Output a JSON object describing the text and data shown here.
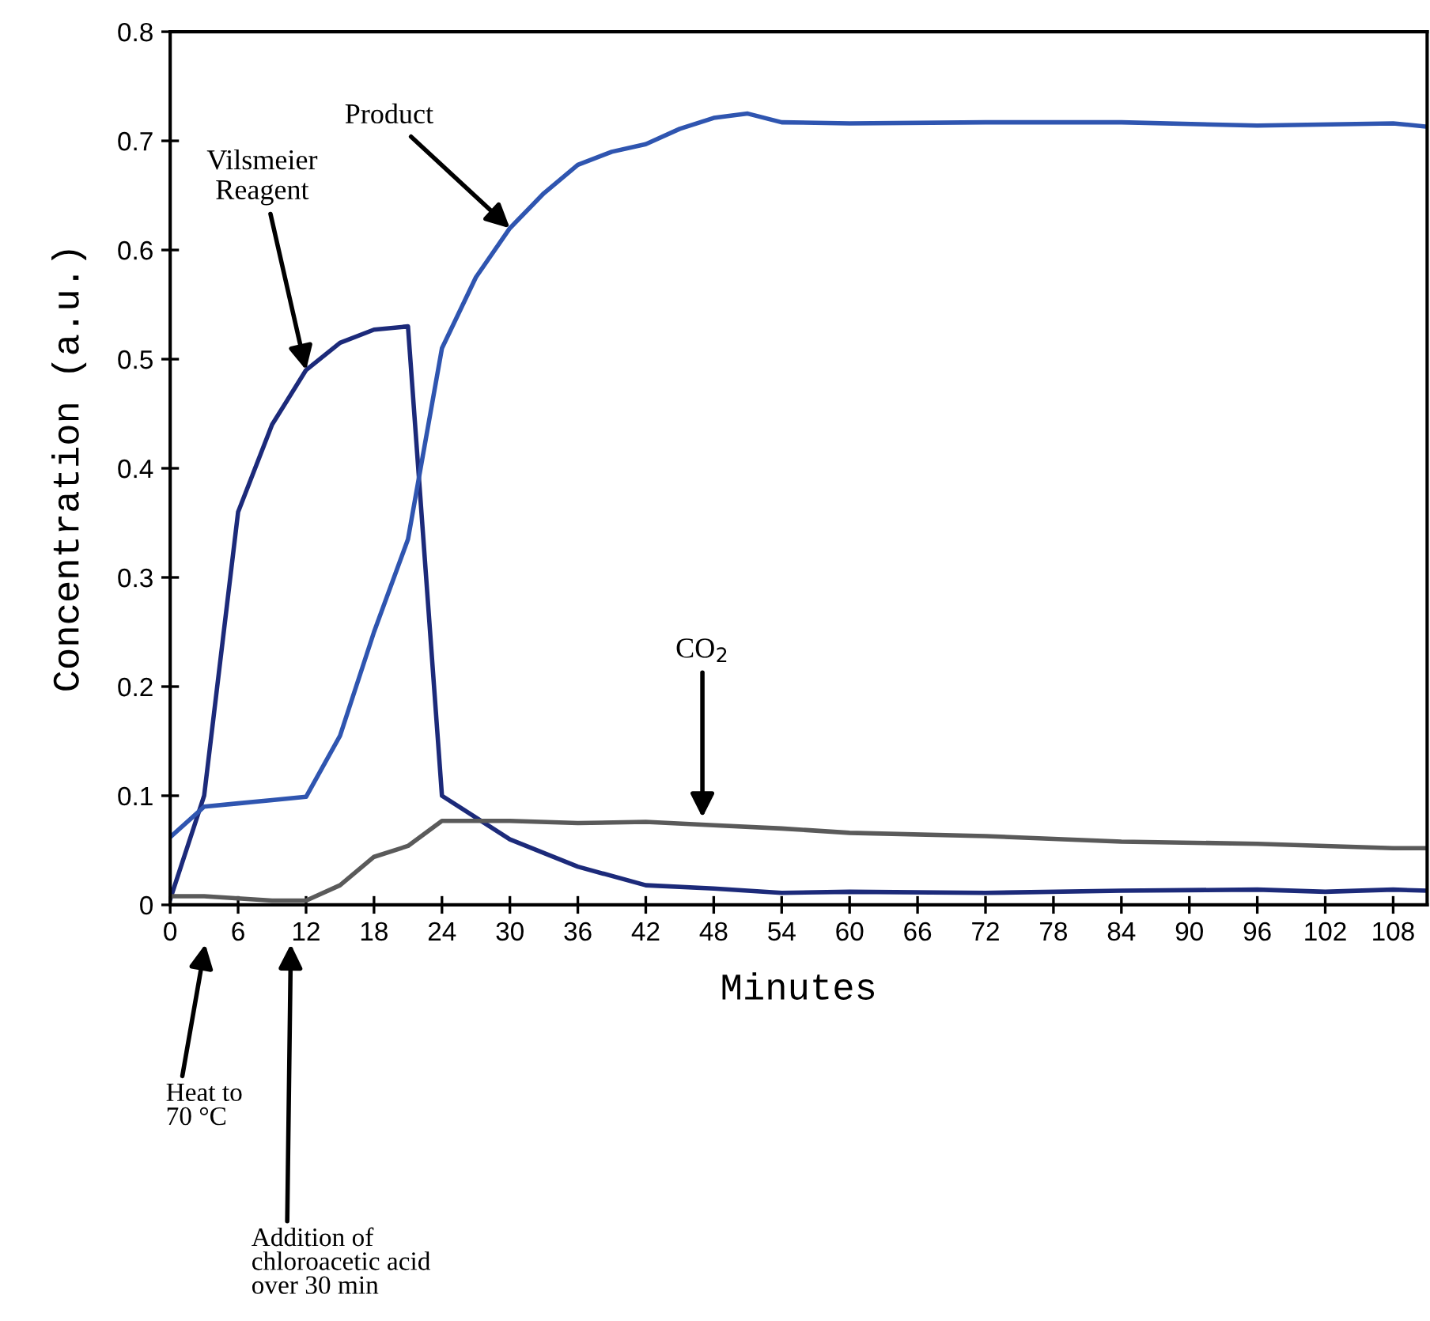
{
  "chart_data": {
    "type": "line",
    "xlabel": "Minutes",
    "ylabel": "Concentration (a.u.)",
    "xlim": [
      0,
      111
    ],
    "ylim": [
      0,
      0.8
    ],
    "xticks": [
      0,
      6,
      12,
      18,
      24,
      30,
      36,
      42,
      48,
      54,
      60,
      66,
      72,
      78,
      84,
      90,
      96,
      102,
      108
    ],
    "yticks": [
      0,
      0.1,
      0.2,
      0.3,
      0.4,
      0.5,
      0.6,
      0.7,
      0.8
    ],
    "grid": false,
    "legend": false,
    "marker": "none",
    "line_style": "solid",
    "series": [
      {
        "color": "#1c2a7a",
        "x": [
          0,
          3,
          6,
          9,
          12,
          15,
          18,
          21,
          24,
          30,
          36,
          42,
          48,
          54,
          60,
          72,
          84,
          96,
          102,
          108,
          111
        ],
        "values": [
          0.005,
          0.1,
          0.36,
          0.44,
          0.49,
          0.515,
          0.527,
          0.53,
          0.1,
          0.06,
          0.035,
          0.018,
          0.015,
          0.011,
          0.012,
          0.011,
          0.013,
          0.014,
          0.012,
          0.014,
          0.013
        ]
      },
      {
        "color": "#2f55b0",
        "x": [
          0,
          3,
          6,
          9,
          12,
          15,
          18,
          21,
          24,
          27,
          30,
          33,
          36,
          39,
          42,
          45,
          48,
          51,
          54,
          60,
          72,
          84,
          96,
          108,
          111
        ],
        "values": [
          0.062,
          0.09,
          0.093,
          0.096,
          0.099,
          0.155,
          0.25,
          0.335,
          0.51,
          0.575,
          0.62,
          0.652,
          0.678,
          0.69,
          0.697,
          0.711,
          0.721,
          0.725,
          0.717,
          0.716,
          0.717,
          0.717,
          0.714,
          0.716,
          0.713
        ]
      },
      {
        "color": "#5a5a5a",
        "x": [
          0,
          3,
          6,
          9,
          12,
          15,
          18,
          21,
          24,
          30,
          36,
          42,
          48,
          54,
          60,
          72,
          84,
          96,
          108,
          111
        ],
        "values": [
          0.008,
          0.008,
          0.006,
          0.004,
          0.004,
          0.018,
          0.044,
          0.054,
          0.077,
          0.077,
          0.075,
          0.076,
          0.073,
          0.07,
          0.066,
          0.063,
          0.058,
          0.056,
          0.052,
          0.052
        ]
      }
    ],
    "annotations": [
      {
        "text": "Vilsmeier\nReagent",
        "x": 12,
        "y": 0.49
      },
      {
        "text": "Product",
        "x": 30,
        "y": 0.62
      },
      {
        "text": "CO$_{2}$",
        "x": 47,
        "y": 0.08
      },
      "Heat to\n70 °C",
      "Addition of\nchloroacetic acid\nover 30 min"
    ]
  }
}
